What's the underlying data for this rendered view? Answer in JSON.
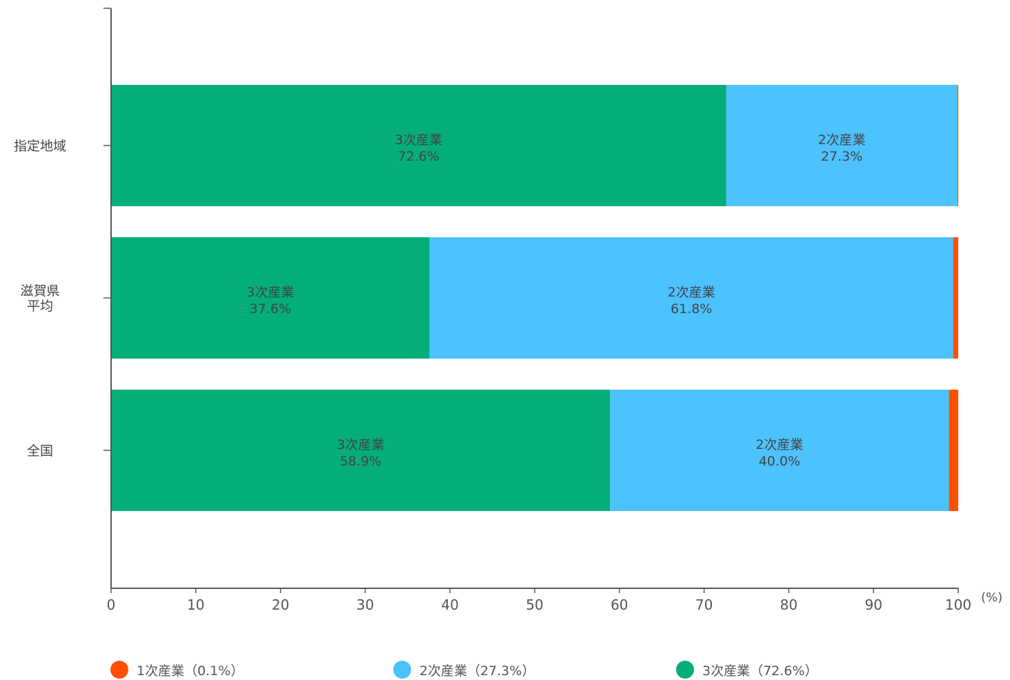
{
  "chart_data": {
    "type": "bar",
    "orientation": "horizontal",
    "stacked": true,
    "categories": [
      "指定地域",
      "滋賀県\n平均",
      "全国"
    ],
    "series": [
      {
        "name": "3次産業",
        "color": "#03AE79",
        "values": [
          72.6,
          37.6,
          58.9
        ]
      },
      {
        "name": "2次産業",
        "color": "#4CC2FF",
        "values": [
          27.3,
          61.8,
          40.0
        ]
      },
      {
        "name": "1次産業",
        "color": "#FF4F00",
        "values": [
          0.1,
          0.6,
          1.1
        ]
      }
    ],
    "data_labels": [
      [
        {
          "name": "3次産業",
          "value": "72.6%"
        },
        {
          "name": "2次産業",
          "value": "27.3%"
        }
      ],
      [
        {
          "name": "3次産業",
          "value": "37.6%"
        },
        {
          "name": "2次産業",
          "value": "61.8%"
        }
      ],
      [
        {
          "name": "3次産業",
          "value": "58.9%"
        },
        {
          "name": "2次産業",
          "value": "40.0%"
        }
      ]
    ],
    "x_ticks": [
      "0",
      "10",
      "20",
      "30",
      "40",
      "50",
      "60",
      "70",
      "80",
      "90",
      "100"
    ],
    "xlim": [
      0,
      100
    ],
    "x_unit": "(%)",
    "title": "",
    "xlabel": "",
    "ylabel": "",
    "grid": false,
    "legend_position": "bottom"
  },
  "legend": [
    {
      "label": "1次産業（0.1%）",
      "color": "#FF4F00"
    },
    {
      "label": "2次産業（27.3%）",
      "color": "#4CC2FF"
    },
    {
      "label": "3次産業（72.6%）",
      "color": "#03AE79"
    }
  ]
}
